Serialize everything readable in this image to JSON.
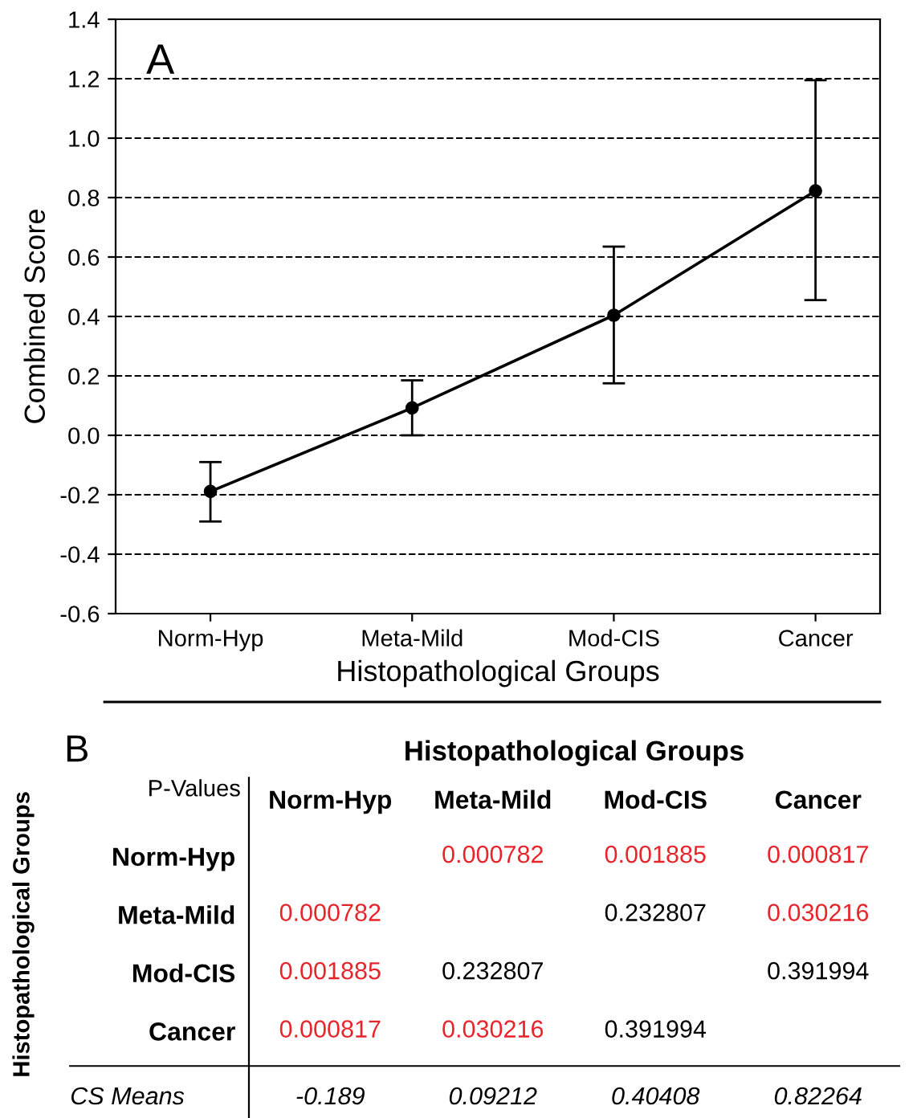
{
  "chart_data": [
    {
      "type": "line",
      "ylabel": "Combined Score",
      "xlabel": "Histopathological Groups",
      "annotations": [
        "A"
      ],
      "categories": [
        "Norm-Hyp",
        "Meta-Mild",
        "Mod-CIS",
        "Cancer"
      ],
      "series": [
        {
          "color": "#000000",
          "values": [
            -0.189,
            0.09212,
            0.40408,
            0.82264
          ],
          "errors": [
            [
              -0.29,
              -0.09
            ],
            [
              0.0,
              0.185
            ],
            [
              0.175,
              0.635
            ],
            [
              0.455,
              1.195
            ]
          ]
        }
      ],
      "ylim": [
        -0.6,
        1.4
      ],
      "yticks": [
        -0.6,
        -0.4,
        -0.2,
        {
          "value": 0,
          "label": "0.0"
        },
        0.2,
        0.4,
        0.6,
        0.8,
        {
          "value": 1,
          "label": "1.0"
        },
        1.2,
        1.4
      ],
      "grid": "y",
      "line_style": "solid",
      "marker": "circle",
      "legend": false
    },
    {
      "type": "heatmap",
      "title": "Histopathological Groups",
      "ylabel": "Histopathological Groups",
      "annotations": [
        "B",
        "P-Values",
        "CS Means",
        "-0.189",
        "0.09212",
        "0.40408",
        "0.82264"
      ],
      "categories": [
        "Norm-Hyp",
        "Meta-Mild",
        "Mod-CIS",
        "Cancer"
      ],
      "y_categories": [
        "Norm-Hyp",
        "Meta-Mild",
        "Mod-CIS",
        "Cancer"
      ],
      "cells": [
        [
          null,
          0.000782,
          0.001885,
          0.000817
        ],
        [
          0.000782,
          null,
          0.232807,
          0.030216
        ],
        [
          0.001885,
          0.232807,
          null,
          0.391994
        ],
        [
          0.000817,
          0.030216,
          0.391994,
          null
        ]
      ],
      "data_labels": true,
      "colors": [
        [
          null,
          "#e8242b",
          "#e8242b",
          "#e8242b"
        ],
        [
          "#e8242b",
          null,
          "#000000",
          "#e8242b"
        ],
        [
          "#e8242b",
          "#000000",
          null,
          "#000000"
        ],
        [
          "#e8242b",
          "#e8242b",
          "#000000",
          null
        ]
      ]
    }
  ]
}
